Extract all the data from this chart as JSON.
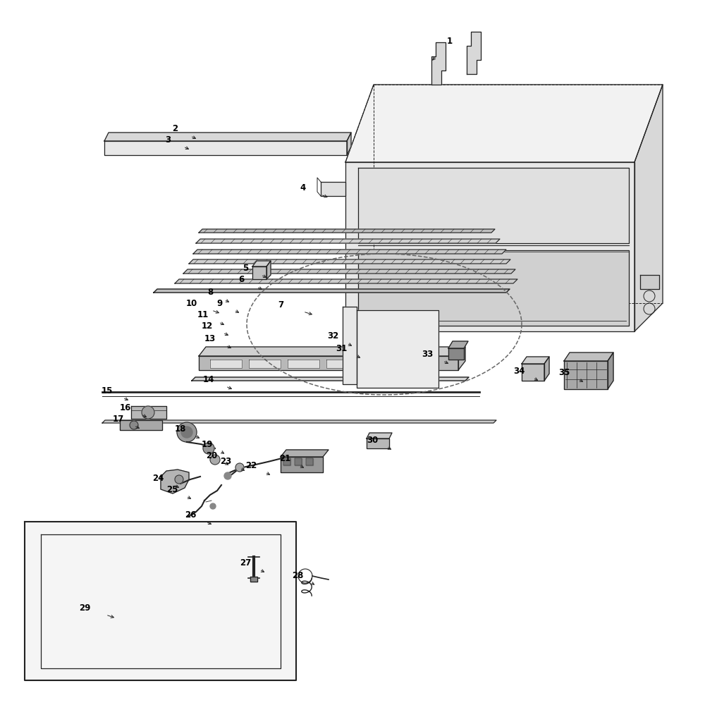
{
  "bg": "#ffffff",
  "lc": "#222222",
  "gray1": "#c8c8c8",
  "gray2": "#d8d8d8",
  "gray3": "#e8e8e8",
  "gray4": "#b0b0b0",
  "gray5": "#f2f2f2",
  "figsize": [
    10,
    10
  ],
  "dpi": 100,
  "labels": [
    [
      "1",
      638,
      58,
      620,
      78,
      640,
      78
    ],
    [
      "2",
      248,
      183,
      270,
      193,
      248,
      193
    ],
    [
      "3",
      238,
      198,
      260,
      208,
      238,
      208
    ],
    [
      "4",
      430,
      266,
      455,
      276,
      430,
      276
    ],
    [
      "5",
      348,
      380,
      370,
      390,
      348,
      390
    ],
    [
      "6",
      342,
      397,
      364,
      407,
      342,
      407
    ],
    [
      "7",
      398,
      432,
      430,
      442,
      398,
      442
    ],
    [
      "8",
      298,
      415,
      318,
      425,
      298,
      425
    ],
    [
      "9",
      312,
      430,
      332,
      440,
      312,
      440
    ],
    [
      "10",
      272,
      430,
      300,
      440,
      272,
      440
    ],
    [
      "11",
      288,
      447,
      310,
      457,
      288,
      457
    ],
    [
      "12",
      294,
      462,
      316,
      472,
      294,
      472
    ],
    [
      "13",
      298,
      480,
      320,
      490,
      298,
      490
    ],
    [
      "14",
      296,
      538,
      320,
      548,
      296,
      548
    ],
    [
      "15",
      152,
      554,
      174,
      564,
      152,
      564
    ],
    [
      "16",
      178,
      578,
      200,
      588,
      178,
      588
    ],
    [
      "17",
      168,
      594,
      190,
      604,
      168,
      604
    ],
    [
      "18",
      256,
      608,
      276,
      618,
      256,
      618
    ],
    [
      "19",
      294,
      630,
      312,
      640,
      294,
      640
    ],
    [
      "20",
      300,
      646,
      318,
      656,
      300,
      656
    ],
    [
      "21",
      404,
      650,
      424,
      660,
      404,
      660
    ],
    [
      "22",
      356,
      660,
      376,
      670,
      356,
      670
    ],
    [
      "23",
      320,
      654,
      340,
      664,
      320,
      664
    ],
    [
      "24",
      224,
      678,
      246,
      688,
      224,
      688
    ],
    [
      "25",
      244,
      694,
      264,
      704,
      244,
      704
    ],
    [
      "26",
      270,
      730,
      292,
      740,
      270,
      740
    ],
    [
      "27",
      348,
      798,
      368,
      808,
      348,
      808
    ],
    [
      "28",
      422,
      816,
      440,
      826,
      422,
      826
    ],
    [
      "29",
      120,
      862,
      150,
      872,
      120,
      872
    ],
    [
      "30",
      528,
      624,
      548,
      634,
      528,
      634
    ],
    [
      "31",
      484,
      494,
      504,
      504,
      484,
      504
    ],
    [
      "32",
      472,
      477,
      492,
      487,
      472,
      487
    ],
    [
      "33",
      606,
      502,
      628,
      512,
      606,
      512
    ],
    [
      "34",
      736,
      526,
      756,
      536,
      736,
      536
    ],
    [
      "35",
      800,
      528,
      820,
      538,
      800,
      538
    ]
  ]
}
